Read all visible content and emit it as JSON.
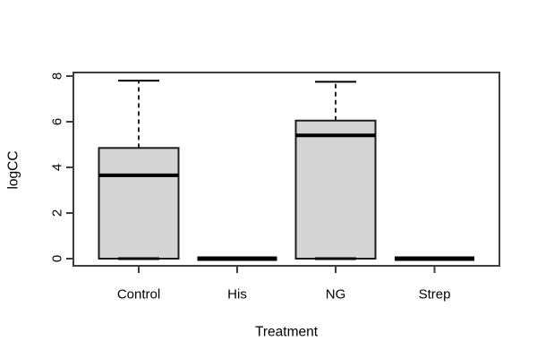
{
  "chart_data": {
    "type": "boxplot",
    "title": "",
    "xlabel": "Treatment",
    "ylabel": "logCC",
    "ylim": [
      0,
      8
    ],
    "yticks": [
      "0",
      "2",
      "4",
      "6",
      "8"
    ],
    "ytick_values": [
      0,
      2,
      4,
      6,
      8
    ],
    "categories": [
      "Control",
      "His",
      "NG",
      "Strep"
    ],
    "series": [
      {
        "name": "Control",
        "min": 0,
        "q1": 0,
        "median": 3.65,
        "q3": 4.85,
        "max": 7.8
      },
      {
        "name": "His",
        "min": 0,
        "q1": 0,
        "median": 0,
        "q3": 0,
        "max": 0
      },
      {
        "name": "NG",
        "min": 0,
        "q1": 0,
        "median": 5.4,
        "q3": 6.05,
        "max": 7.75
      },
      {
        "name": "Strep",
        "min": 0,
        "q1": 0,
        "median": 0,
        "q3": 0,
        "max": 0
      }
    ],
    "legend": null,
    "grid": false,
    "colors": {
      "box_fill": "#d4d4d4",
      "box_border": "#1c1c1c",
      "median": "#000000",
      "whisker": "#000000",
      "frame": "#3d3d3d",
      "text": "#000000",
      "background": "#ffffff"
    }
  }
}
